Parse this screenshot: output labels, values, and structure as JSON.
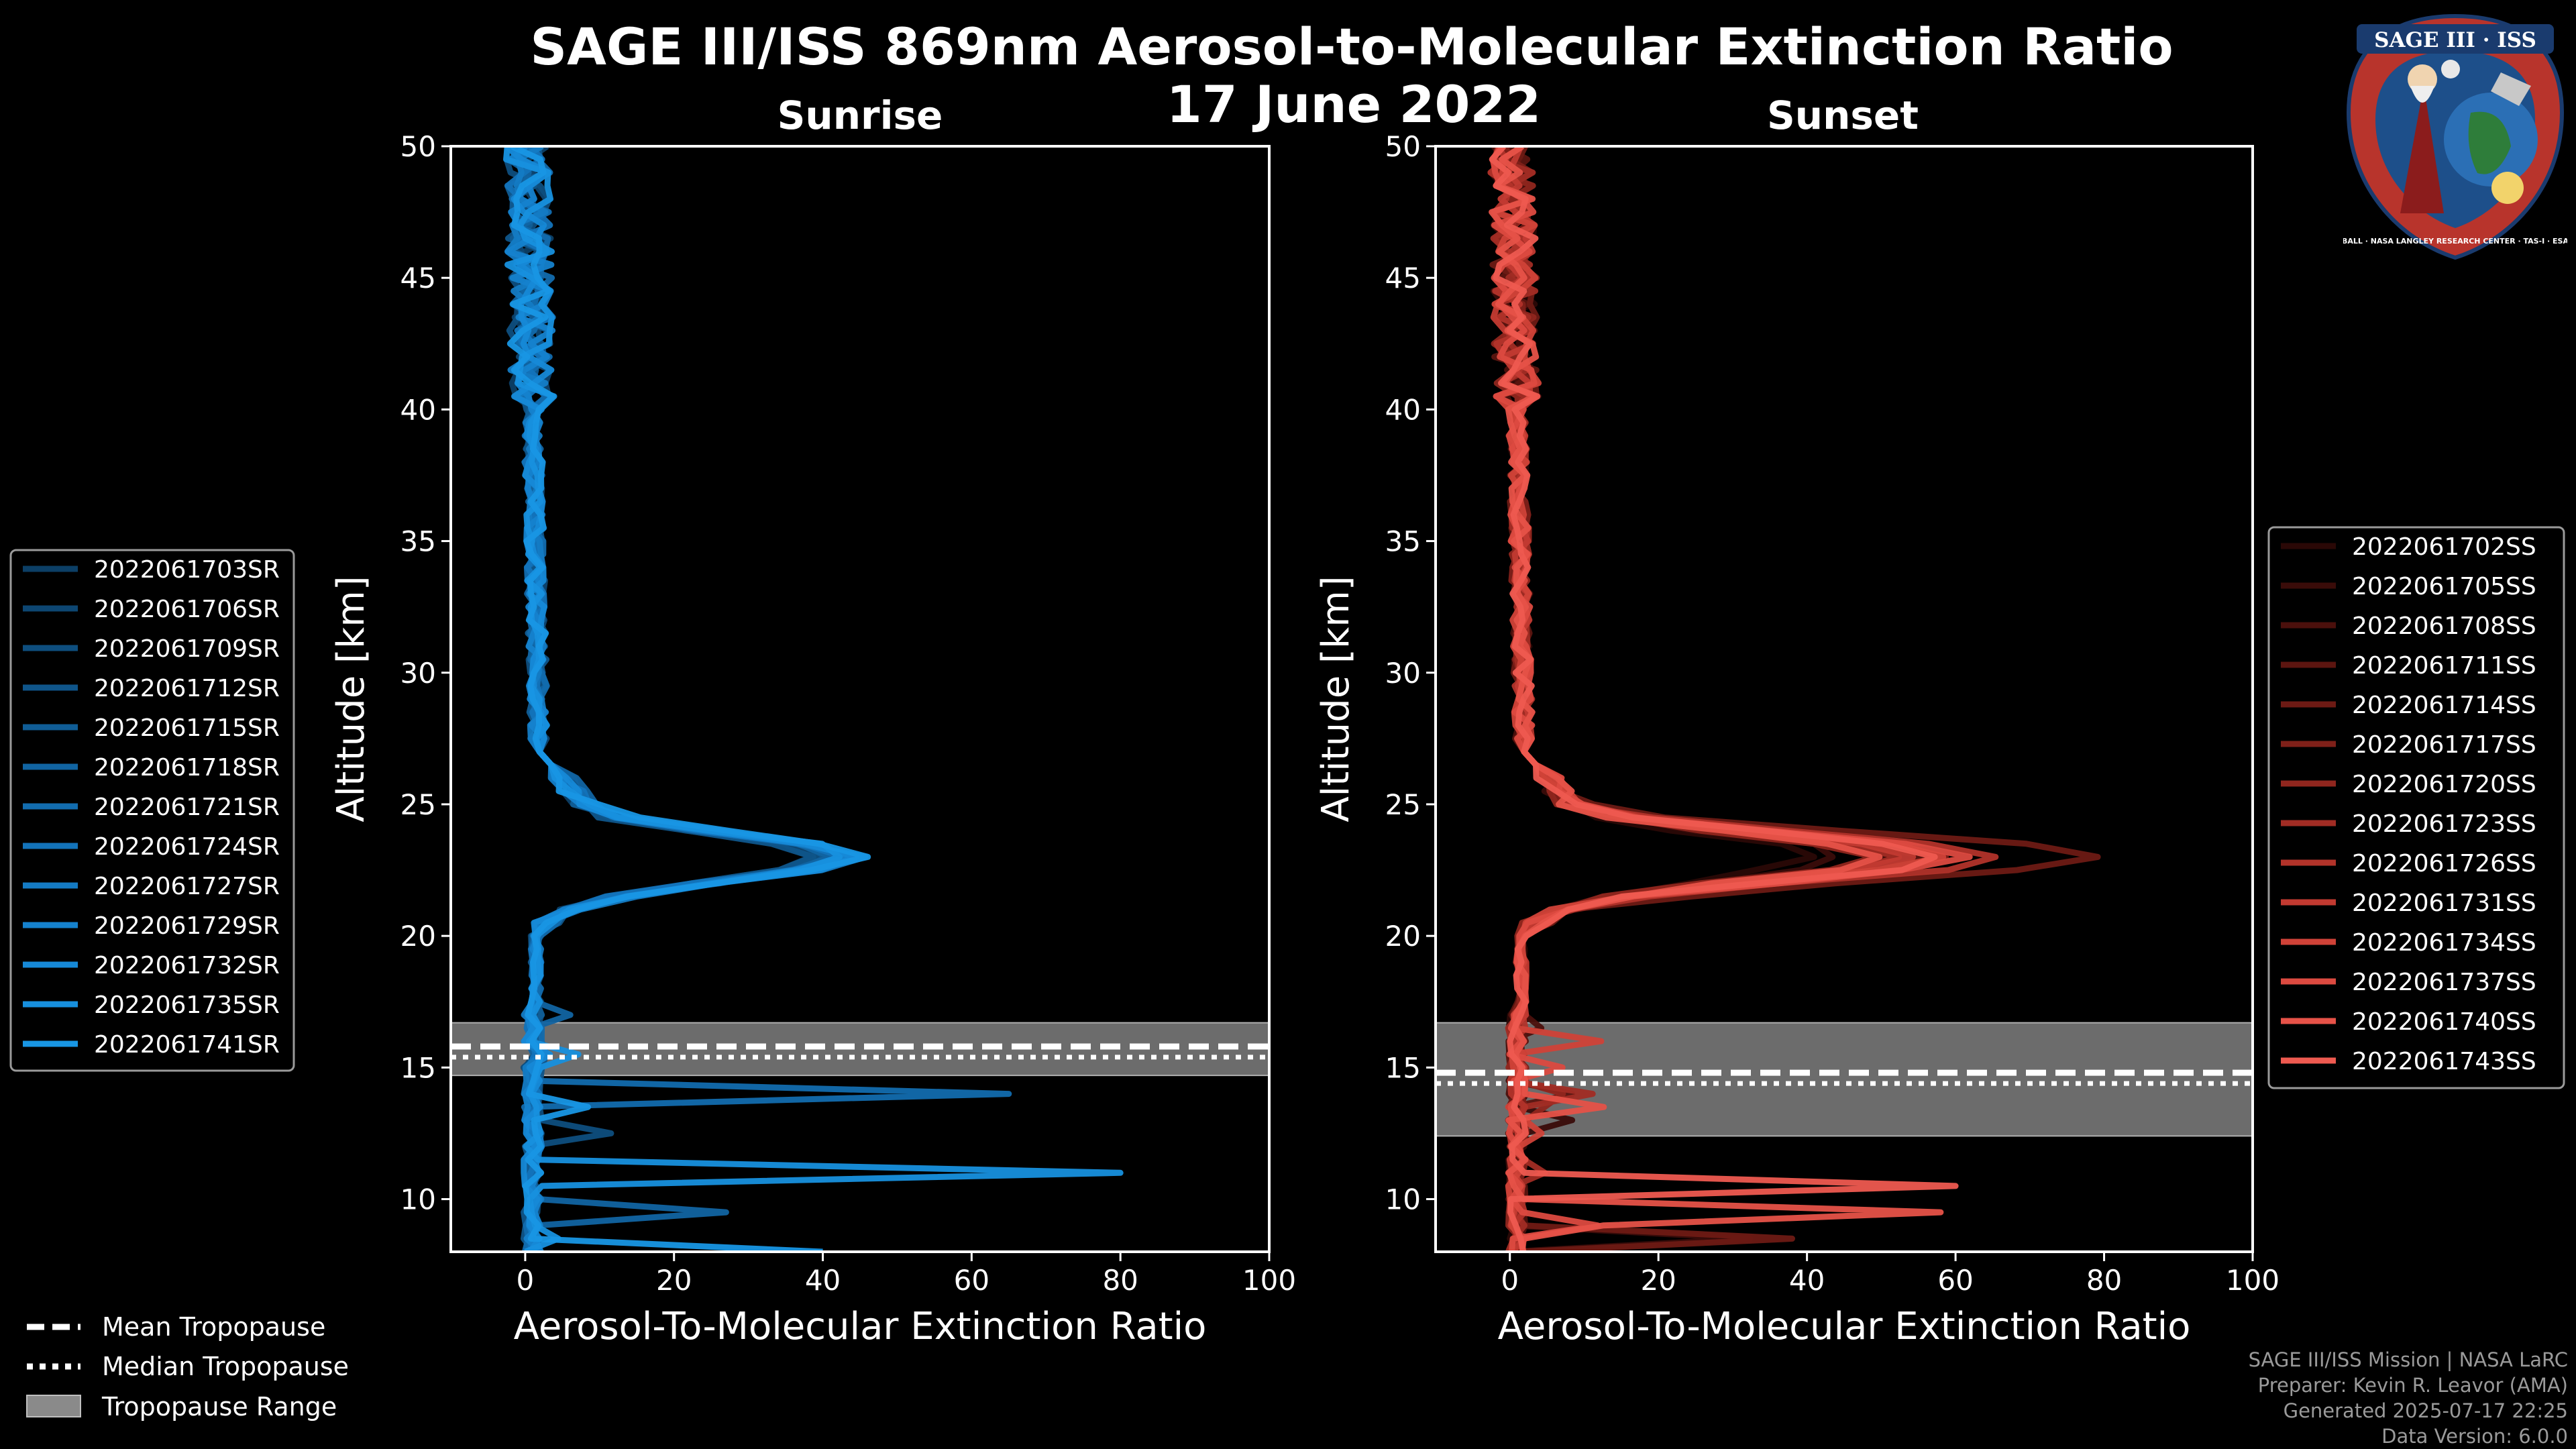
{
  "figure": {
    "title": "SAGE III/ISS 869nm Aerosol-to-Molecular Extinction Ratio",
    "date": "17 June 2022"
  },
  "chart_data": [
    {
      "type": "line",
      "title": "Sunrise",
      "xlabel": "Aerosol-To-Molecular Extinction Ratio",
      "ylabel": "Altitude [km]",
      "xlim": [
        -10,
        100
      ],
      "ylim": [
        8,
        50
      ],
      "xticks": [
        0,
        20,
        40,
        60,
        80,
        100
      ],
      "yticks": [
        10,
        15,
        20,
        25,
        30,
        35,
        40,
        45,
        50
      ],
      "tropopause": {
        "mean": 15.8,
        "median": 15.7,
        "range": [
          14.7,
          16.7
        ]
      },
      "peak_altitude": 23,
      "peak_values": [
        38,
        40,
        41,
        39,
        42,
        40,
        43,
        41,
        44,
        43,
        45,
        44,
        46
      ],
      "spikes": [
        {
          "alt": 14.0,
          "value": 65,
          "series": 6
        },
        {
          "alt": 11.1,
          "value": 80,
          "series": 11
        },
        {
          "alt": 9.5,
          "value": 27,
          "series": 5
        },
        {
          "alt": 8.2,
          "value": 40,
          "series": 12
        }
      ],
      "series": [
        {
          "name": "2022061703SR",
          "color": "#0c3f66"
        },
        {
          "name": "2022061706SR",
          "color": "#0d4672"
        },
        {
          "name": "2022061709SR",
          "color": "#0e4e7e"
        },
        {
          "name": "2022061712SR",
          "color": "#0f558a"
        },
        {
          "name": "2022061715SR",
          "color": "#105d96"
        },
        {
          "name": "2022061718SR",
          "color": "#1164a2"
        },
        {
          "name": "2022061721SR",
          "color": "#126cae"
        },
        {
          "name": "2022061724SR",
          "color": "#1373ba"
        },
        {
          "name": "2022061727SR",
          "color": "#147bc4"
        },
        {
          "name": "2022061729SR",
          "color": "#1582ce"
        },
        {
          "name": "2022061732SR",
          "color": "#1689d7"
        },
        {
          "name": "2022061735SR",
          "color": "#1790de"
        },
        {
          "name": "2022061741SR",
          "color": "#1896e4"
        }
      ]
    },
    {
      "type": "line",
      "title": "Sunset",
      "xlabel": "Aerosol-To-Molecular Extinction Ratio",
      "ylabel": "Altitude [km]",
      "xlim": [
        -10,
        100
      ],
      "ylim": [
        8,
        50
      ],
      "xticks": [
        0,
        20,
        40,
        60,
        80,
        100
      ],
      "yticks": [
        10,
        15,
        20,
        25,
        30,
        35,
        40,
        45,
        50
      ],
      "tropopause": {
        "mean": 14.8,
        "median": 14.7,
        "range": [
          12.4,
          16.7
        ]
      },
      "peak_altitude": 23,
      "peak_values": [
        40,
        45,
        50,
        55,
        80,
        60,
        48,
        52,
        66,
        55,
        58,
        62,
        50,
        59
      ],
      "spikes": [
        {
          "alt": 10.5,
          "value": 60,
          "series": 13
        },
        {
          "alt": 9.5,
          "value": 58,
          "series": 12
        },
        {
          "alt": 8.6,
          "value": 38,
          "series": 4
        },
        {
          "alt": 8.3,
          "value": 22,
          "series": 1
        }
      ],
      "series": [
        {
          "name": "2022061702SS",
          "color": "#2a0806"
        },
        {
          "name": "2022061705SS",
          "color": "#3a0c09"
        },
        {
          "name": "2022061708SS",
          "color": "#4b100c"
        },
        {
          "name": "2022061711SS",
          "color": "#5c1510"
        },
        {
          "name": "2022061714SS",
          "color": "#6d1a14"
        },
        {
          "name": "2022061717SS",
          "color": "#7f2019"
        },
        {
          "name": "2022061720SS",
          "color": "#90261e"
        },
        {
          "name": "2022061723SS",
          "color": "#a12c24"
        },
        {
          "name": "2022061726SS",
          "color": "#b2332a"
        },
        {
          "name": "2022061731SS",
          "color": "#c23a31"
        },
        {
          "name": "2022061734SS",
          "color": "#d04238"
        },
        {
          "name": "2022061737SS",
          "color": "#dc4a40"
        },
        {
          "name": "2022061740SS",
          "color": "#e65248"
        },
        {
          "name": "2022061743SS",
          "color": "#ee5a50"
        }
      ]
    }
  ],
  "tropopause_legend": [
    "Mean Tropopause",
    "Median Tropopause",
    "Tropopause Range"
  ],
  "logo": {
    "title": "SAGE III · ISS",
    "ring_text": "BALL · NASA LANGLEY RESEARCH CENTER · TAS-I · ESA"
  },
  "footer": [
    "SAGE III/ISS Mission | NASA LaRC",
    "Preparer: Kevin R. Leavor (AMA)",
    "Generated 2025-07-17 22:25",
    "Data Version: 6.0.0"
  ]
}
